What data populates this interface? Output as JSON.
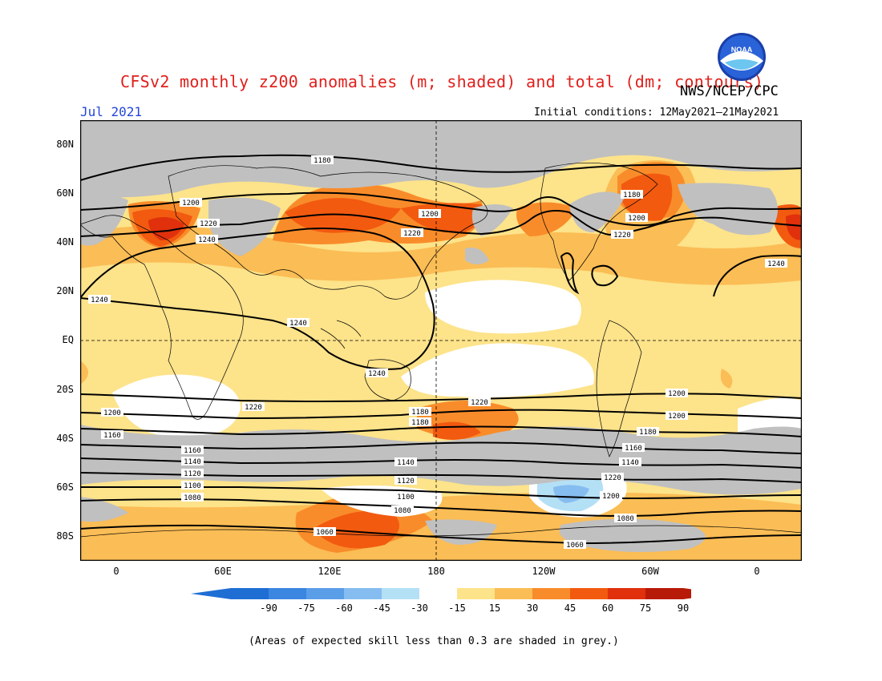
{
  "title": "CFSv2 monthly z200 anomalies (m; shaded) and total (dm; contours)",
  "agency": "NWS/NCEP/CPC",
  "logo_text": "NOAA",
  "month_label": "Jul 2021",
  "initial_conditions": "Initial conditions: 12May2021–21May2021",
  "footnote": "(Areas of expected skill less than 0.3 are shaded in grey.)",
  "axes": {
    "lat_labels": [
      "80N",
      "60N",
      "40N",
      "20N",
      "EQ",
      "20S",
      "40S",
      "60S",
      "80S"
    ],
    "lon_labels": [
      "0",
      "60E",
      "120E",
      "180",
      "120W",
      "60W",
      "0"
    ]
  },
  "colorbar": {
    "labels": [
      "-90",
      "-75",
      "-60",
      "-45",
      "-30",
      "-15",
      "15",
      "30",
      "45",
      "60",
      "75",
      "90"
    ],
    "colors": [
      "#1e6ed4",
      "#3a86e0",
      "#5a9ee8",
      "#86bdf0",
      "#b4e0f6",
      "#ffffff",
      "#fde38a",
      "#fbbd55",
      "#f98c2a",
      "#f25a10",
      "#e0300c",
      "#b81a08"
    ],
    "grey_color": "#c0c0c0"
  },
  "contours": [
    {
      "value": "1180",
      "dm": 1180
    },
    {
      "value": "1200",
      "dm": 1200
    },
    {
      "value": "1220",
      "dm": 1220
    },
    {
      "value": "1240",
      "dm": 1240
    },
    {
      "value": "1240",
      "dm": 1240
    },
    {
      "value": "1240",
      "dm": 1240
    },
    {
      "value": "1240",
      "dm": 1240
    },
    {
      "value": "1220",
      "dm": 1220
    },
    {
      "value": "1200",
      "dm": 1200
    },
    {
      "value": "1180",
      "dm": 1180
    },
    {
      "value": "1160",
      "dm": 1160
    },
    {
      "value": "1140",
      "dm": 1140
    },
    {
      "value": "1120",
      "dm": 1120
    },
    {
      "value": "1100",
      "dm": 1100
    },
    {
      "value": "1080",
      "dm": 1080
    },
    {
      "value": "1060",
      "dm": 1060
    }
  ],
  "contour_labels": [
    {
      "text": "1180"
    },
    {
      "text": "1200"
    },
    {
      "text": "1220"
    },
    {
      "text": "1240"
    },
    {
      "text": "1200"
    },
    {
      "text": "1220"
    },
    {
      "text": "1180"
    },
    {
      "text": "1200"
    },
    {
      "text": "1220"
    },
    {
      "text": "1240"
    },
    {
      "text": "1240"
    },
    {
      "text": "1240"
    },
    {
      "text": "1240"
    },
    {
      "text": "1220"
    },
    {
      "text": "1220"
    },
    {
      "text": "1200"
    },
    {
      "text": "1200"
    },
    {
      "text": "1180"
    },
    {
      "text": "1180"
    },
    {
      "text": "1160"
    },
    {
      "text": "1160"
    },
    {
      "text": "1140"
    },
    {
      "text": "1140"
    },
    {
      "text": "1120"
    },
    {
      "text": "1120"
    },
    {
      "text": "1100"
    },
    {
      "text": "1100"
    },
    {
      "text": "1080"
    },
    {
      "text": "1080"
    },
    {
      "text": "1080"
    },
    {
      "text": "1060"
    },
    {
      "text": "1060"
    },
    {
      "text": "1200"
    },
    {
      "text": "1180"
    },
    {
      "text": "1160"
    },
    {
      "text": "1140"
    },
    {
      "text": "1220"
    },
    {
      "text": "1200"
    }
  ]
}
